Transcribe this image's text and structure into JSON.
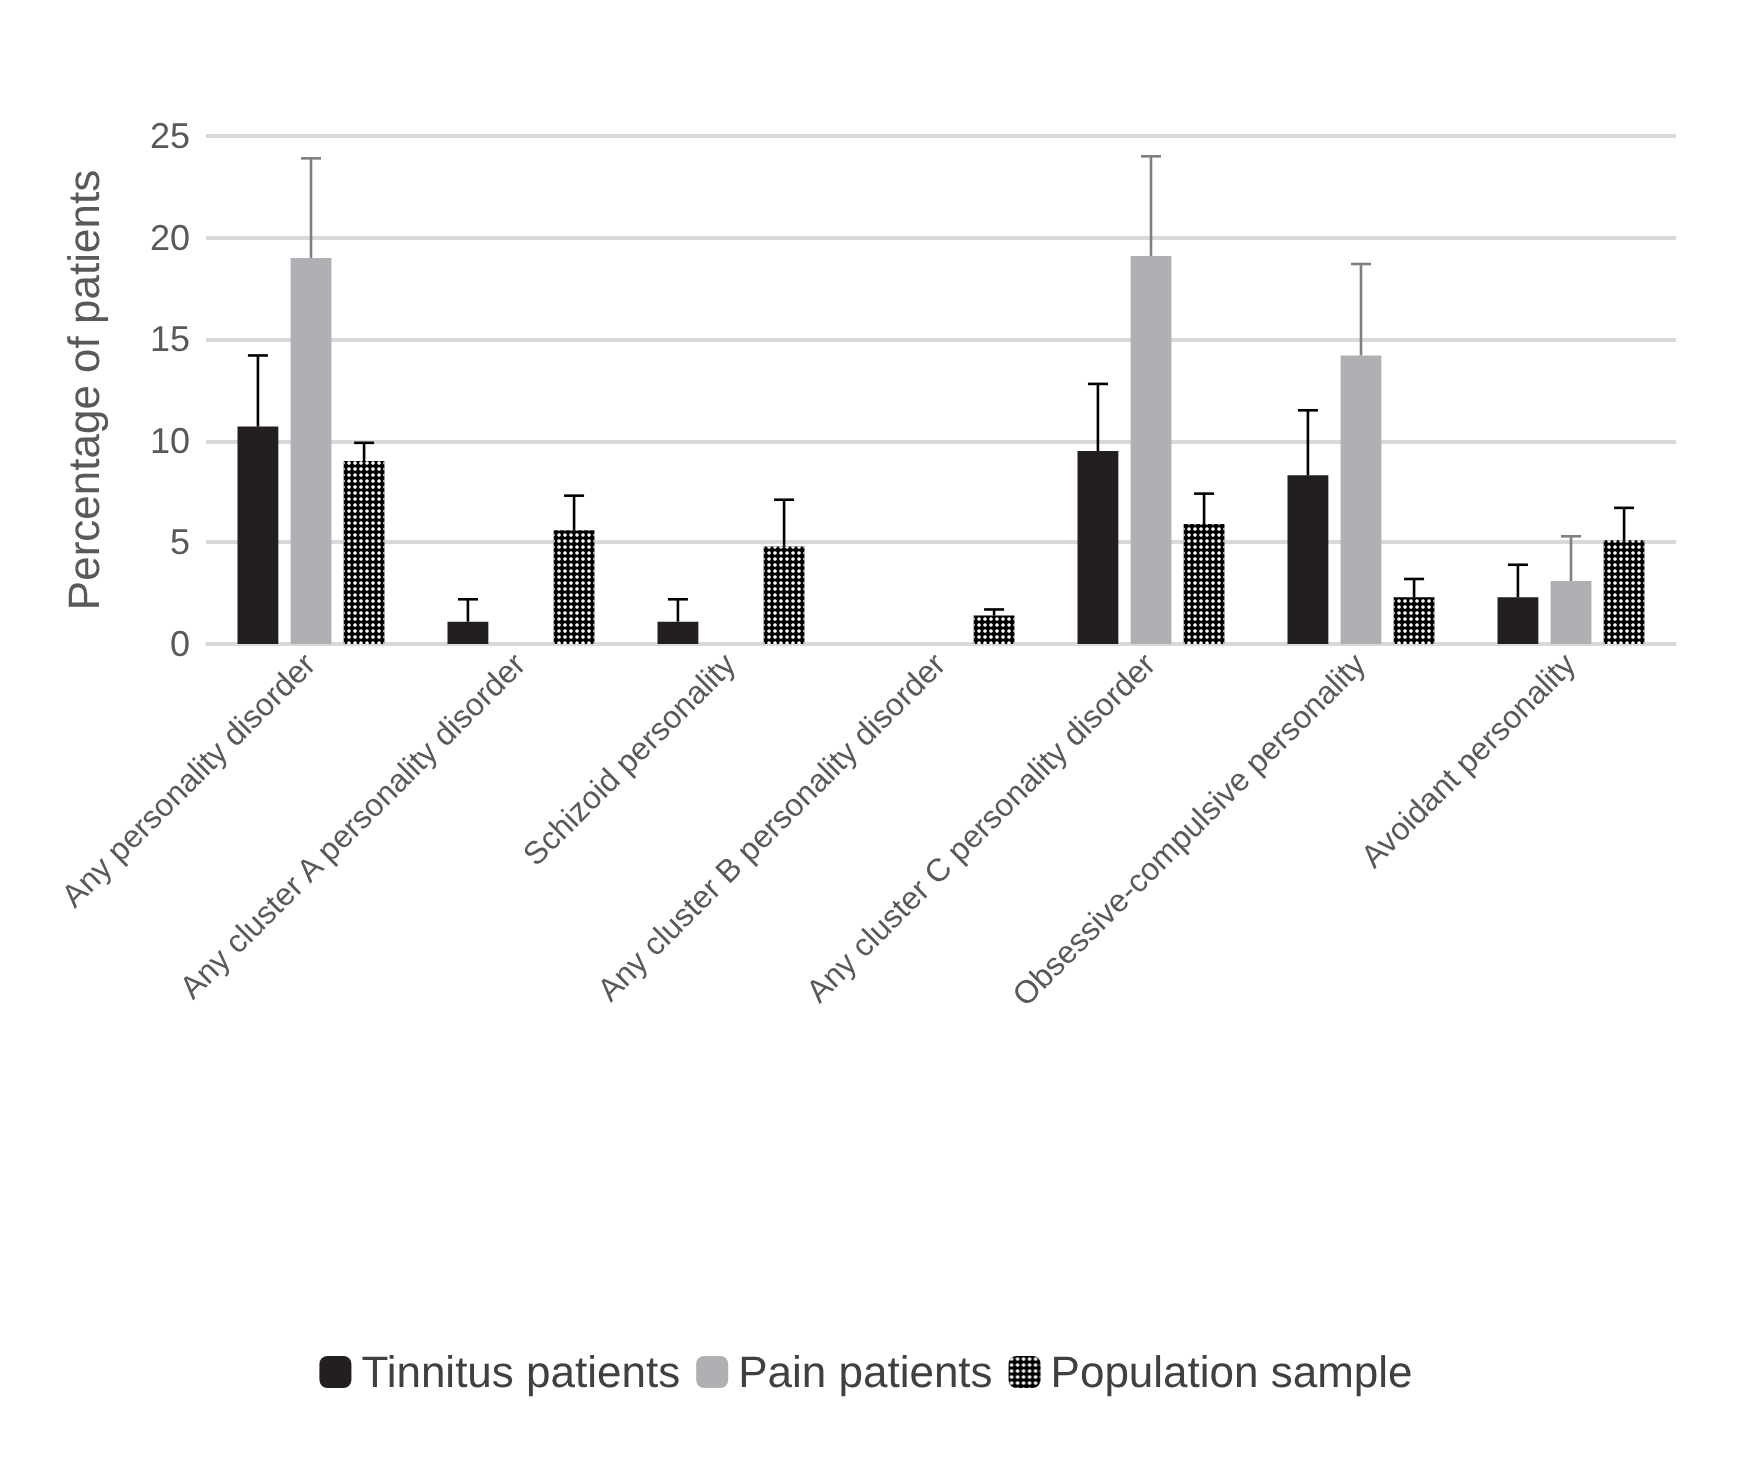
{
  "chart_data": {
    "type": "bar",
    "ylabel": "Percentage of patients",
    "categories": [
      "Any personality disorder",
      "Any cluster A personality disorder",
      "Schizoid personality",
      "Any cluster B personality disorder",
      "Any cluster C personality disorder",
      "Obsessive-compulsive personality",
      "Avoidant personality"
    ],
    "series": [
      {
        "name": "Tinnitus patients",
        "color": "#231f20",
        "values": [
          10.7,
          1.1,
          1.1,
          null,
          9.5,
          8.3,
          2.3
        ],
        "errors": [
          [
            10.7,
            14.2
          ],
          [
            1.1,
            2.2
          ],
          [
            1.1,
            2.2
          ],
          null,
          [
            9.5,
            12.8
          ],
          [
            8.3,
            11.5
          ],
          [
            2.3,
            3.9
          ]
        ]
      },
      {
        "name": "Pain patients",
        "color": "#afb0b3",
        "values": [
          19.0,
          null,
          null,
          null,
          19.1,
          14.2,
          3.1
        ],
        "errors": [
          [
            19.0,
            23.9
          ],
          null,
          null,
          null,
          [
            19.1,
            24.0
          ],
          [
            14.2,
            18.7
          ],
          [
            3.1,
            5.3
          ]
        ]
      },
      {
        "name": "Population sample",
        "color": "#000000",
        "values": [
          9.0,
          5.6,
          4.8,
          1.4,
          5.9,
          2.3,
          5.1
        ],
        "errors": [
          [
            9.0,
            9.9
          ],
          [
            5.6,
            7.3
          ],
          [
            4.8,
            7.1
          ],
          [
            1.4,
            1.7
          ],
          [
            5.9,
            7.4
          ],
          [
            2.3,
            3.2
          ],
          [
            5.1,
            6.7
          ]
        ]
      }
    ],
    "ylim": [
      0,
      25
    ],
    "yticks": [
      0,
      5,
      10,
      15,
      20,
      25
    ],
    "grid": "y",
    "legend": "bottom"
  }
}
